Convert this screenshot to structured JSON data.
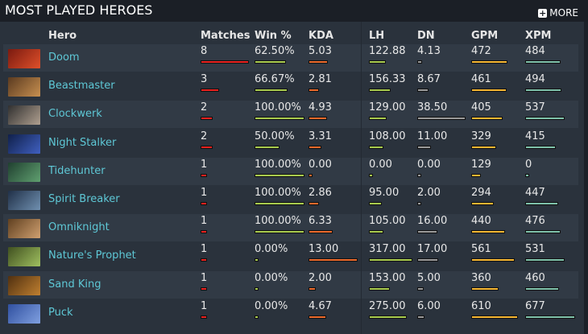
{
  "header": {
    "title": "MOST PLAYED HEROES",
    "more_label": "MORE",
    "more_icon": "plus-square-icon"
  },
  "columns": {
    "hero": "Hero",
    "matches": "Matches",
    "win": "Win %",
    "kda": "KDA",
    "lh": "LH",
    "dn": "DN",
    "gpm": "GPM",
    "xpm": "XPM"
  },
  "colors": {
    "matches": "#e8211f",
    "win": "#a9cc4f",
    "kda": "#ec6a2c",
    "lh": "#a9cc4f",
    "dn": "#9a9a9a",
    "gpm": "#f6b733",
    "xpm": "#7fc3ac",
    "hero_link": "#5ec8d6"
  },
  "heroes": [
    {
      "name": "Doom",
      "matches": "8",
      "win": "62.50%",
      "kda": "5.03",
      "lh": "122.88",
      "dn": "4.13",
      "gpm": "472",
      "xpm": "484",
      "portrait": [
        "#7a1a10",
        "#e0502a"
      ]
    },
    {
      "name": "Beastmaster",
      "matches": "3",
      "win": "66.67%",
      "kda": "2.81",
      "lh": "156.33",
      "dn": "8.67",
      "gpm": "461",
      "xpm": "494",
      "portrait": [
        "#5a3a20",
        "#c89050"
      ]
    },
    {
      "name": "Clockwerk",
      "matches": "2",
      "win": "100.00%",
      "kda": "4.93",
      "lh": "129.00",
      "dn": "38.50",
      "gpm": "405",
      "xpm": "537",
      "portrait": [
        "#303030",
        "#b0a090"
      ]
    },
    {
      "name": "Night Stalker",
      "matches": "2",
      "win": "50.00%",
      "kda": "3.31",
      "lh": "108.00",
      "dn": "11.00",
      "gpm": "329",
      "xpm": "415",
      "portrait": [
        "#10204a",
        "#4060c0"
      ]
    },
    {
      "name": "Tidehunter",
      "matches": "1",
      "win": "100.00%",
      "kda": "0.00",
      "lh": "0.00",
      "dn": "0.00",
      "gpm": "129",
      "xpm": "0",
      "portrait": [
        "#204030",
        "#60a070"
      ]
    },
    {
      "name": "Spirit Breaker",
      "matches": "1",
      "win": "100.00%",
      "kda": "2.86",
      "lh": "95.00",
      "dn": "2.00",
      "gpm": "294",
      "xpm": "447",
      "portrait": [
        "#203048",
        "#7090b0"
      ]
    },
    {
      "name": "Omniknight",
      "matches": "1",
      "win": "100.00%",
      "kda": "6.33",
      "lh": "105.00",
      "dn": "16.00",
      "gpm": "440",
      "xpm": "476",
      "portrait": [
        "#604020",
        "#d0a070"
      ]
    },
    {
      "name": "Nature's Prophet",
      "matches": "1",
      "win": "0.00%",
      "kda": "13.00",
      "lh": "317.00",
      "dn": "17.00",
      "gpm": "561",
      "xpm": "531",
      "portrait": [
        "#405020",
        "#a0c060"
      ]
    },
    {
      "name": "Sand King",
      "matches": "1",
      "win": "0.00%",
      "kda": "2.00",
      "lh": "153.00",
      "dn": "5.00",
      "gpm": "360",
      "xpm": "460",
      "portrait": [
        "#503010",
        "#c08030"
      ]
    },
    {
      "name": "Puck",
      "matches": "1",
      "win": "0.00%",
      "kda": "4.67",
      "lh": "275.00",
      "dn": "6.00",
      "gpm": "610",
      "xpm": "677",
      "portrait": [
        "#3050a0",
        "#80a0e0"
      ]
    }
  ]
}
